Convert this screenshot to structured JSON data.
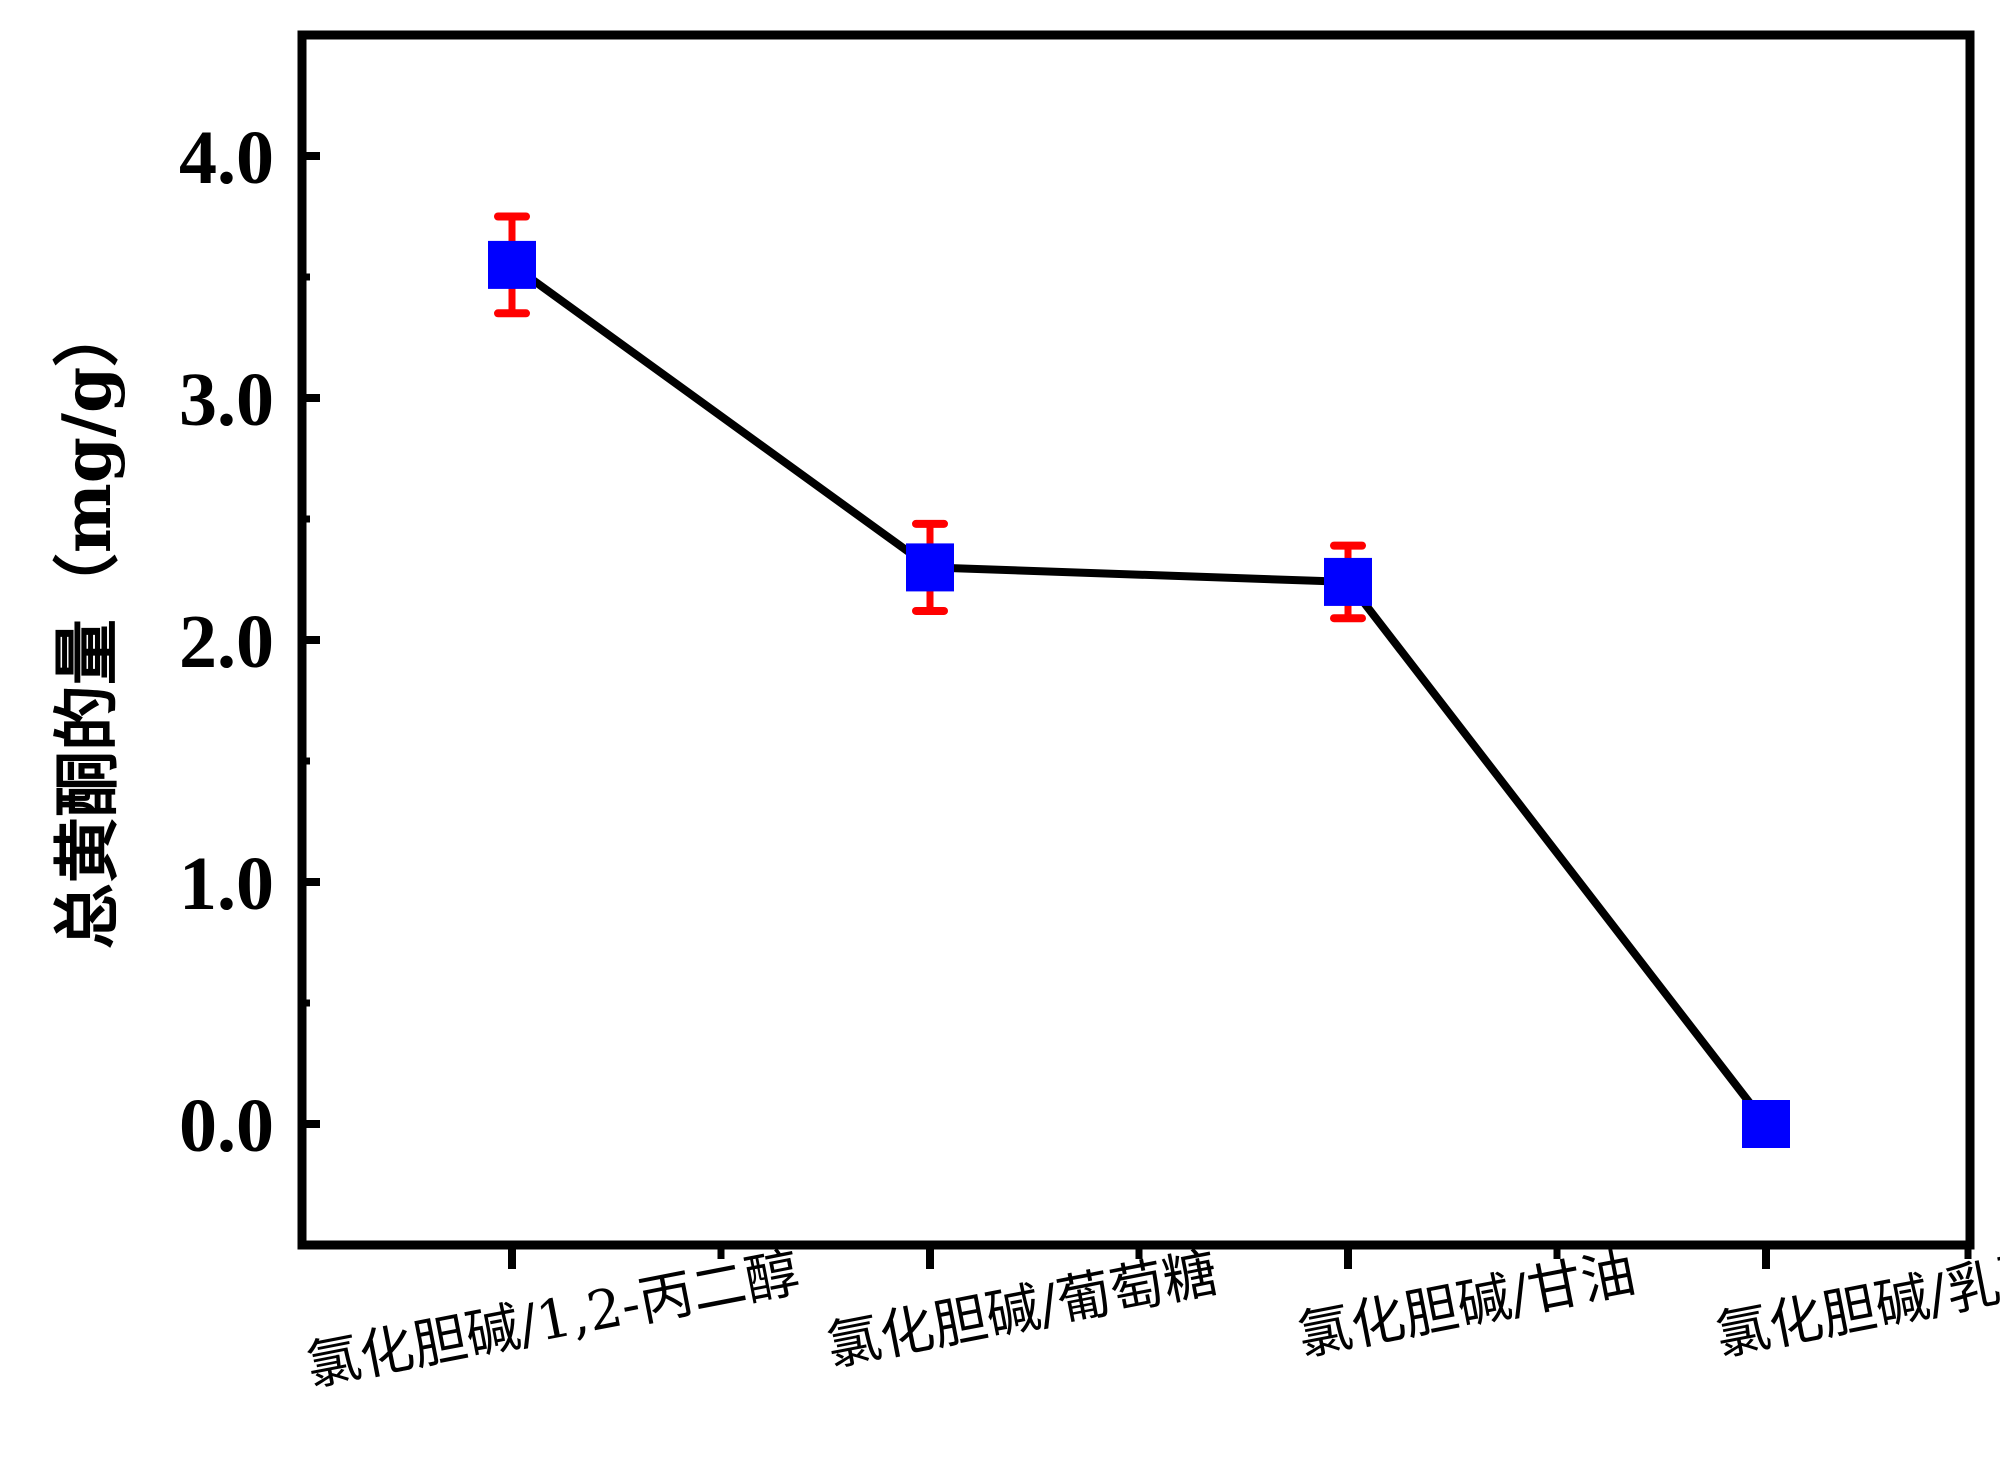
{
  "chart_data": {
    "type": "line",
    "ylabel": "总黄酮的量（mg/g）",
    "xlabel": "",
    "categories": [
      "氯化胆碱/1,2-丙二醇",
      "氯化胆碱/葡萄糖",
      "氯化胆碱/甘油",
      "氯化胆碱/乳酸"
    ],
    "values": [
      3.55,
      2.3,
      2.24,
      0.0
    ],
    "errors": [
      0.2,
      0.18,
      0.15,
      null
    ],
    "ylim": [
      -0.5,
      4.5
    ],
    "yticks": [
      0.0,
      1.0,
      2.0,
      3.0,
      4.0
    ],
    "ytick_labels": [
      "0.0",
      "1.0",
      "2.0",
      "3.0",
      "4.0"
    ],
    "grid": false,
    "colors": {
      "marker": "#0000ff",
      "line": "#000000",
      "error_bar": "#ff0000",
      "axis": "#000000"
    }
  }
}
